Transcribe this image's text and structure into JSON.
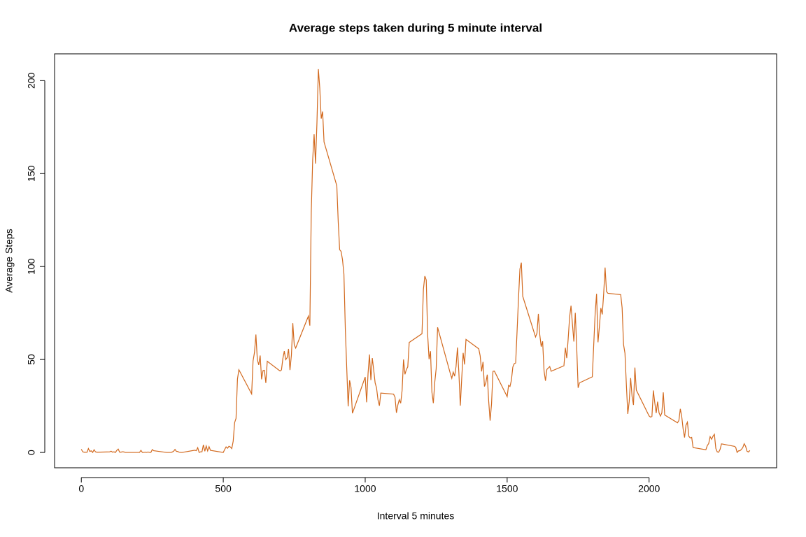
{
  "chart_data": {
    "type": "line",
    "title": "Average steps taken during 5 minute interval",
    "x_label": "Interval 5 minutes",
    "y_label": "Average Steps",
    "xlim": [
      -94.2,
      2449.2
    ],
    "ylim": [
      -8.25,
      214.42
    ],
    "xticks": [
      0,
      500,
      1000,
      1500,
      2000
    ],
    "yticks": [
      0,
      50,
      100,
      150,
      200
    ],
    "x": [
      0,
      5,
      10,
      15,
      20,
      25,
      30,
      35,
      40,
      45,
      50,
      55,
      100,
      105,
      110,
      115,
      120,
      125,
      130,
      135,
      140,
      145,
      150,
      155,
      200,
      205,
      210,
      215,
      220,
      225,
      230,
      235,
      240,
      245,
      250,
      255,
      300,
      305,
      310,
      315,
      320,
      325,
      330,
      335,
      340,
      345,
      350,
      355,
      400,
      405,
      410,
      415,
      420,
      425,
      430,
      435,
      440,
      445,
      450,
      455,
      500,
      505,
      510,
      515,
      520,
      525,
      530,
      535,
      540,
      545,
      550,
      555,
      600,
      605,
      610,
      615,
      620,
      625,
      630,
      635,
      640,
      645,
      650,
      655,
      700,
      705,
      710,
      715,
      720,
      725,
      730,
      735,
      740,
      745,
      750,
      755,
      800,
      805,
      810,
      815,
      820,
      825,
      830,
      835,
      840,
      845,
      850,
      855,
      900,
      905,
      910,
      915,
      920,
      925,
      930,
      935,
      940,
      945,
      950,
      955,
      1000,
      1005,
      1010,
      1015,
      1020,
      1025,
      1030,
      1035,
      1040,
      1045,
      1050,
      1055,
      1100,
      1105,
      1110,
      1115,
      1120,
      1125,
      1130,
      1135,
      1140,
      1145,
      1150,
      1155,
      1200,
      1205,
      1210,
      1215,
      1220,
      1225,
      1230,
      1235,
      1240,
      1245,
      1250,
      1255,
      1300,
      1305,
      1310,
      1315,
      1320,
      1325,
      1330,
      1335,
      1340,
      1345,
      1350,
      1355,
      1400,
      1405,
      1410,
      1415,
      1420,
      1425,
      1430,
      1435,
      1440,
      1445,
      1450,
      1455,
      1500,
      1505,
      1510,
      1515,
      1520,
      1525,
      1530,
      1535,
      1540,
      1545,
      1550,
      1555,
      1600,
      1605,
      1610,
      1615,
      1620,
      1625,
      1630,
      1635,
      1640,
      1645,
      1650,
      1655,
      1700,
      1705,
      1710,
      1715,
      1720,
      1725,
      1730,
      1735,
      1740,
      1745,
      1750,
      1755,
      1800,
      1805,
      1810,
      1815,
      1820,
      1825,
      1830,
      1835,
      1840,
      1845,
      1850,
      1855,
      1900,
      1905,
      1910,
      1915,
      1920,
      1925,
      1930,
      1935,
      1940,
      1945,
      1950,
      1955,
      2000,
      2005,
      2010,
      2015,
      2020,
      2025,
      2030,
      2035,
      2040,
      2045,
      2050,
      2055,
      2100,
      2105,
      2110,
      2115,
      2120,
      2125,
      2130,
      2135,
      2140,
      2145,
      2150,
      2155,
      2200,
      2205,
      2210,
      2215,
      2220,
      2225,
      2230,
      2235,
      2240,
      2245,
      2250,
      2255,
      2300,
      2305,
      2310,
      2315,
      2320,
      2325,
      2330,
      2335,
      2340,
      2345,
      2350,
      2355
    ],
    "series": [
      {
        "color": "#d2691e",
        "values": [
          1.72,
          0.34,
          0.13,
          0.15,
          0.08,
          2.09,
          0.53,
          0.87,
          0,
          1.47,
          0.3,
          0.13,
          0.32,
          0.68,
          0.15,
          0.34,
          0,
          1.11,
          1.83,
          0.17,
          0.17,
          0.38,
          0.26,
          0,
          0,
          0,
          1.13,
          0,
          0,
          0.13,
          0,
          0.23,
          0,
          0,
          1.55,
          0.94,
          0,
          0,
          0,
          0,
          0.21,
          0.62,
          1.62,
          0.58,
          0.49,
          0.08,
          0,
          0,
          1.19,
          0.94,
          2.57,
          0,
          0.34,
          0.36,
          4.11,
          0.66,
          3.49,
          0.83,
          3.11,
          1.11,
          0,
          1.57,
          3,
          2.25,
          3.32,
          2.96,
          2.09,
          6.06,
          16.02,
          18.34,
          39.45,
          44.49,
          31.49,
          49.26,
          53.77,
          63.45,
          49.96,
          47.08,
          52.15,
          39.34,
          44.02,
          44.17,
          37.36,
          49.04,
          43.81,
          44.38,
          50.51,
          54.51,
          49.92,
          50.98,
          55.68,
          44.32,
          52.26,
          69.55,
          57.85,
          56.15,
          73.38,
          68.21,
          129.43,
          157.53,
          171.15,
          155.4,
          177.3,
          206.17,
          195.92,
          179.57,
          183.4,
          167.02,
          143.45,
          124.04,
          109.11,
          108.11,
          103.72,
          95.97,
          66.21,
          45.23,
          24.79,
          38.75,
          34.98,
          21.06,
          40.57,
          26.98,
          42.42,
          52.66,
          38.92,
          50.79,
          44.28,
          37.42,
          34.7,
          28.34,
          25.09,
          31.94,
          31.36,
          29.68,
          21.32,
          25.55,
          28.38,
          26.47,
          33.43,
          49.98,
          42.04,
          44.6,
          46.04,
          59.19,
          63.87,
          87.7,
          94.85,
          92.77,
          63.4,
          50.17,
          54.47,
          32.42,
          26.53,
          37.74,
          45.06,
          67.28,
          42.34,
          39.89,
          43.26,
          40.98,
          46.25,
          56.43,
          42.75,
          25.13,
          39.96,
          53.55,
          47.32,
          60.81,
          55.75,
          51.96,
          43.58,
          48.7,
          35.47,
          37.55,
          41.85,
          27.51,
          17.11,
          26.08,
          43.62,
          43.77,
          30.02,
          36.08,
          35.49,
          38.85,
          45.96,
          47.75,
          48.13,
          65.32,
          82.91,
          98.66,
          102.11,
          83.96,
          62.13,
          64.13,
          74.55,
          63.17,
          56.91,
          59.77,
          43.87,
          38.57,
          44.66,
          45.45,
          46.21,
          43.68,
          46.62,
          56.3,
          50.72,
          61.23,
          72.72,
          78.94,
          68.94,
          59.66,
          75.09,
          56.51,
          34.77,
          37.45,
          40.68,
          58.02,
          74.7,
          85.32,
          59.26,
          67.77,
          77.7,
          74.25,
          85.34,
          99.45,
          86.58,
          85.6,
          84.87,
          77.83,
          58.04,
          53.36,
          36.32,
          20.72,
          27.4,
          40.02,
          30.21,
          25.55,
          45.66,
          33.53,
          19.62,
          19.02,
          19.34,
          33.34,
          26.81,
          21.17,
          27.3,
          21.34,
          19.55,
          21.32,
          32.3,
          20.15,
          15.94,
          17.23,
          23.45,
          19.25,
          12.45,
          8.02,
          14.66,
          16.3,
          8.68,
          7.79,
          8.13,
          2.62,
          1.45,
          3.68,
          4.81,
          8.51,
          7.08,
          8.7,
          9.75,
          2.21,
          0.32,
          0.11,
          1.6,
          4.6,
          3.3,
          2.85,
          0,
          0.83,
          0.96,
          1.58,
          2.6,
          4.7,
          3.3,
          0.64,
          0.23,
          1.08
        ]
      }
    ]
  }
}
